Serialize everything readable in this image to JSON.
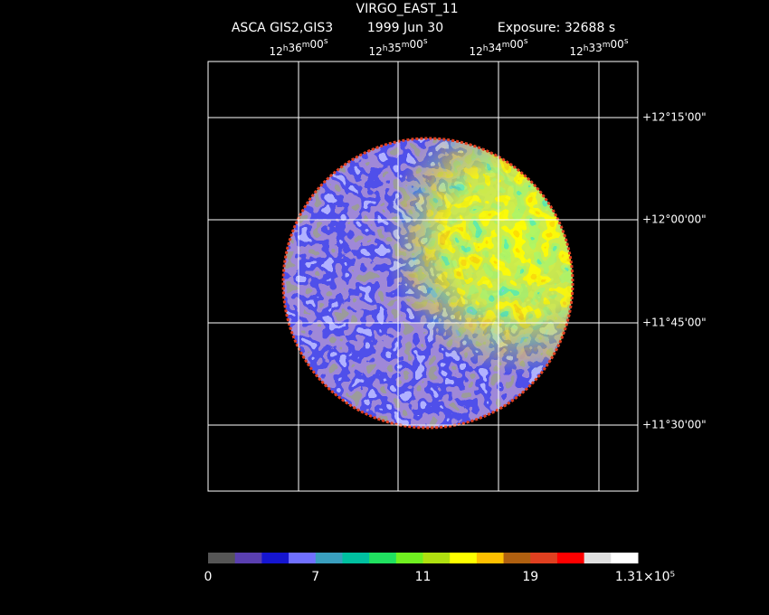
{
  "header": {
    "title": "VIRGO_EAST_11",
    "instrument": "ASCA GIS2,GIS3",
    "date": "1999 Jun 30",
    "exposure": "Exposure: 32688 s"
  },
  "ra_labels": [
    "12h36m00s",
    "12h35m00s",
    "12h34m00s",
    "12h33m00s"
  ],
  "dec_labels": [
    "+12°15'00\"",
    "+12°00'00\"",
    "+11°45'00\"",
    "+11°30'00\""
  ],
  "colorbar": {
    "colors": [
      "#555555",
      "#5a3fb0",
      "#1515d0",
      "#7070ff",
      "#3a9fbf",
      "#00c0a0",
      "#20e060",
      "#70f020",
      "#b0e010",
      "#ffff00",
      "#ffc000",
      "#b06010",
      "#e04020",
      "#ff0000",
      "#e0e0e0",
      "#ffffff"
    ],
    "labels": [
      "0",
      "7",
      "11",
      "19",
      "1.31×10⁵"
    ]
  }
}
